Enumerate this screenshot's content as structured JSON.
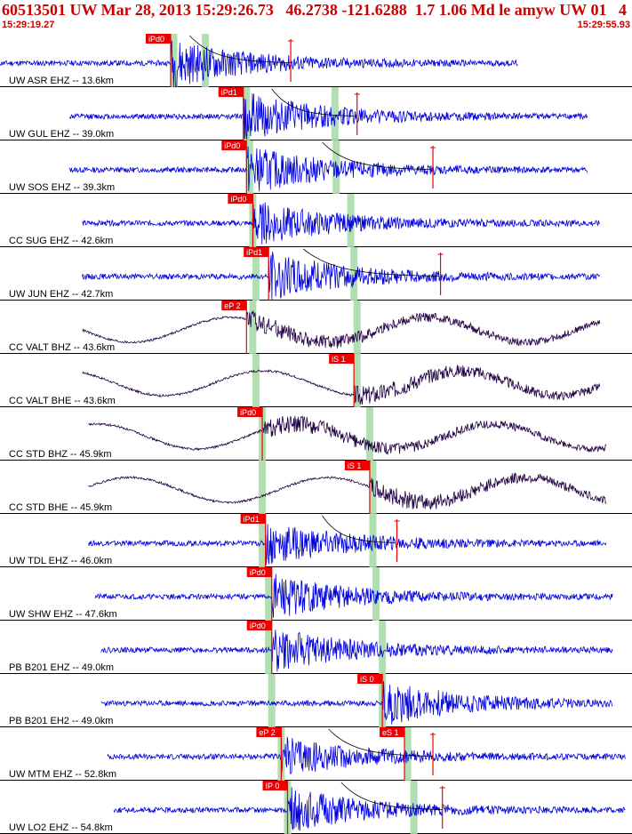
{
  "header": {
    "title": "60513501 UW Mar 28, 2013 15:29:26.73   46.2738 -121.6288  1.7 1.06 Md le amyw UW 01   4",
    "time_start": "15:29:19.27",
    "time_end": "15:29:55.93"
  },
  "colors": {
    "title": "#cc0000",
    "ehz_trace": "#0000dd",
    "broadband_trace": "#220044",
    "pick_box": "#ee0000",
    "pick_text": "#ffffff",
    "theoretical_band": "#a8dca8",
    "decay_curve": "#000000",
    "label": "#000000"
  },
  "chart_data": {
    "type": "line",
    "x_axis": "time",
    "x_range": [
      "15:29:19.27",
      "15:29:55.93"
    ],
    "traces": [
      {
        "label": "UW ASR EHZ -- 13.6km",
        "kind": "ehz",
        "seed": 11,
        "span": [
          0,
          0.82
        ],
        "onset": 0.27,
        "amp": 0.55,
        "picks": [
          {
            "text": "iPd0",
            "t": 0.27
          }
        ],
        "bands": [
          0.275,
          0.325
        ],
        "curve": [
          0.3,
          0.46
        ],
        "marker": 0.46
      },
      {
        "label": "UW GUL EHZ -- 39.0km",
        "kind": "ehz",
        "seed": 12,
        "span": [
          0.11,
          0.93
        ],
        "onset": 0.385,
        "amp": 0.55,
        "picks": [
          {
            "text": "iPd1",
            "t": 0.385
          }
        ],
        "bands": [
          0.39,
          0.53
        ],
        "curve": [
          0.43,
          0.56
        ],
        "marker": 0.565
      },
      {
        "label": "UW SOS EHZ -- 39.3km",
        "kind": "ehz",
        "seed": 13,
        "span": [
          0.11,
          0.93
        ],
        "onset": 0.39,
        "amp": 0.55,
        "picks": [
          {
            "text": "iPd0",
            "t": 0.39
          }
        ],
        "bands": [
          0.395,
          0.532
        ],
        "curve": [
          0.51,
          0.68
        ],
        "marker": 0.685
      },
      {
        "label": "CC SUG EHZ -- 42.6km",
        "kind": "ehz",
        "seed": 14,
        "span": [
          0.13,
          0.95
        ],
        "onset": 0.4,
        "amp": 0.5,
        "picks": [
          {
            "text": "iPd0",
            "t": 0.4
          }
        ],
        "bands": [
          0.4,
          0.555
        ],
        "curve": null,
        "marker": null
      },
      {
        "label": "UW JUN EHZ -- 42.7km",
        "kind": "ehz",
        "seed": 15,
        "span": [
          0.13,
          0.95
        ],
        "onset": 0.425,
        "amp": 0.55,
        "picks": [
          {
            "text": "iPd1",
            "t": 0.425
          }
        ],
        "bands": [
          0.405,
          0.56
        ],
        "curve": [
          0.48,
          0.695
        ],
        "marker": 0.697
      },
      {
        "label": "CC VALT BHZ -- 43.6km",
        "kind": "bb",
        "seed": 16,
        "span": [
          0.13,
          0.95
        ],
        "onset": 0.39,
        "amp": 0.35,
        "picks": [
          {
            "text": "eP 2",
            "t": 0.39
          }
        ],
        "bands": [
          0.4,
          0.565
        ],
        "curve": null,
        "marker": null
      },
      {
        "label": "CC VALT BHE -- 43.6km",
        "kind": "bb",
        "seed": 17,
        "span": [
          0.13,
          0.95
        ],
        "onset": 0.56,
        "amp": 0.35,
        "picks": [
          {
            "text": "iS 1",
            "t": 0.56
          }
        ],
        "bands": [
          0.405,
          0.565
        ],
        "curve": null,
        "marker": null
      },
      {
        "label": "CC STD BHZ -- 45.9km",
        "kind": "bb",
        "seed": 18,
        "span": [
          0.14,
          0.96
        ],
        "onset": 0.415,
        "amp": 0.35,
        "picks": [
          {
            "text": "iPd0",
            "t": 0.415
          }
        ],
        "bands": [
          0.415,
          0.585
        ],
        "curve": null,
        "marker": null
      },
      {
        "label": "CC STD BHE -- 45.9km",
        "kind": "bb",
        "seed": 19,
        "span": [
          0.14,
          0.96
        ],
        "onset": 0.585,
        "amp": 0.4,
        "picks": [
          {
            "text": "iS 1",
            "t": 0.585
          }
        ],
        "bands": [
          0.415,
          0.59
        ],
        "curve": null,
        "marker": null
      },
      {
        "label": "UW TDL EHZ -- 46.0km",
        "kind": "ehz",
        "seed": 20,
        "span": [
          0.14,
          0.96
        ],
        "onset": 0.42,
        "amp": 0.5,
        "picks": [
          {
            "text": "iPd1",
            "t": 0.42
          }
        ],
        "bands": [
          0.415,
          0.59
        ],
        "curve": [
          0.51,
          0.625
        ],
        "marker": 0.628
      },
      {
        "label": "UW SHW EHZ -- 47.6km",
        "kind": "ehz",
        "seed": 21,
        "span": [
          0.15,
          0.97
        ],
        "onset": 0.43,
        "amp": 0.5,
        "picks": [
          {
            "text": "iPd0",
            "t": 0.43
          }
        ],
        "bands": [
          0.425,
          0.595
        ],
        "curve": null,
        "marker": null
      },
      {
        "label": "PB B201 EHZ -- 49.0km",
        "kind": "ehz",
        "seed": 22,
        "span": [
          0.16,
          0.97
        ],
        "onset": 0.43,
        "amp": 0.5,
        "picks": [
          {
            "text": "iPd0",
            "t": 0.43
          }
        ],
        "bands": [
          0.425,
          0.605
        ],
        "curve": null,
        "marker": null
      },
      {
        "label": "PB B201 EH2 -- 49.0km",
        "kind": "ehz",
        "seed": 23,
        "span": [
          0.16,
          0.97
        ],
        "onset": 0.605,
        "amp": 0.5,
        "picks": [
          {
            "text": "iS 0",
            "t": 0.605
          }
        ],
        "bands": [
          0.43,
          0.605
        ],
        "curve": null,
        "marker": null
      },
      {
        "label": "UW MTM EHZ -- 52.8km",
        "kind": "ehz",
        "seed": 24,
        "span": [
          0.17,
          0.99
        ],
        "onset": 0.445,
        "amp": 0.45,
        "picks": [
          {
            "text": "eP 2",
            "t": 0.445
          },
          {
            "text": "eS 1",
            "t": 0.64
          }
        ],
        "bands": [
          0.445,
          0.645
        ],
        "curve": [
          0.52,
          0.685
        ],
        "marker": 0.685
      },
      {
        "label": "UW LO2 EHZ -- 54.8km",
        "kind": "ehz",
        "seed": 25,
        "span": [
          0.18,
          0.99
        ],
        "onset": 0.455,
        "amp": 0.5,
        "picks": [
          {
            "text": "IP 0",
            "t": 0.455
          }
        ],
        "bands": [
          0.455,
          0.655
        ],
        "curve": [
          0.54,
          0.7
        ],
        "marker": 0.7
      }
    ]
  }
}
